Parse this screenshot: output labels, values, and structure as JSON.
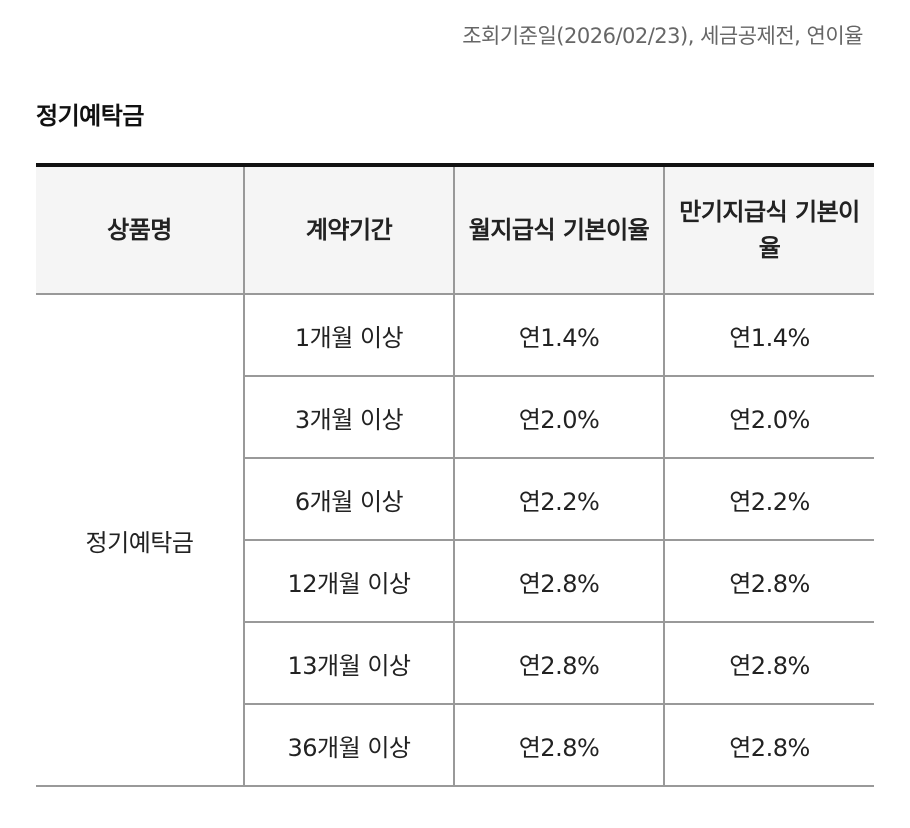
{
  "header": {
    "note": "조회기준일(2026/02/23), 세금공제전, 연이율"
  },
  "section": {
    "title": "정기예탁금"
  },
  "table": {
    "headers": [
      "상품명",
      "계약기간",
      "월지급식 기본이율",
      "만기지급식 기본이율"
    ],
    "product": "정기예탁금",
    "rows": [
      {
        "period": "1개월 이상",
        "monthly": "연1.4%",
        "maturity": "연1.4%"
      },
      {
        "period": "3개월 이상",
        "monthly": "연2.0%",
        "maturity": "연2.0%"
      },
      {
        "period": "6개월 이상",
        "monthly": "연2.2%",
        "maturity": "연2.2%"
      },
      {
        "period": "12개월 이상",
        "monthly": "연2.8%",
        "maturity": "연2.8%"
      },
      {
        "period": "13개월 이상",
        "monthly": "연2.8%",
        "maturity": "연2.8%"
      },
      {
        "period": "36개월 이상",
        "monthly": "연2.8%",
        "maturity": "연2.8%"
      }
    ]
  }
}
